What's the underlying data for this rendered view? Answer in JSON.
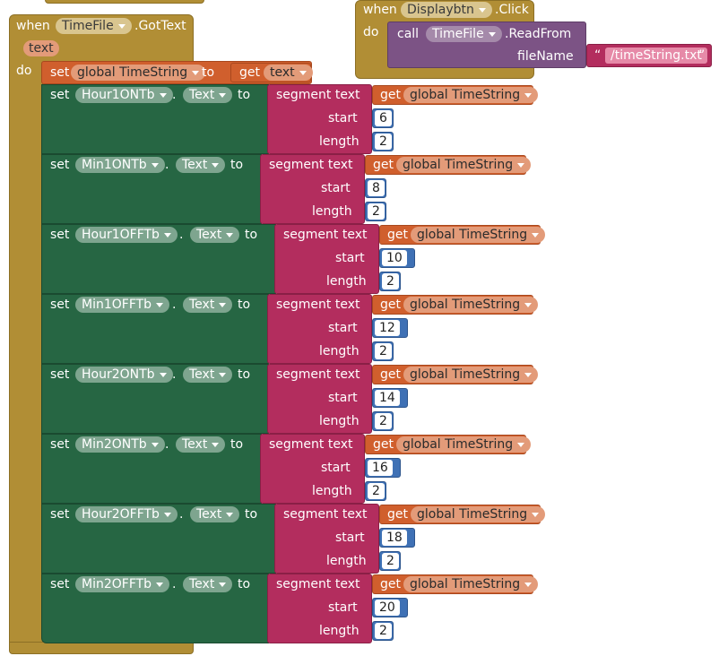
{
  "event1": {
    "when": "when",
    "component": "TimeFile",
    "event": ".GotText",
    "param": "text",
    "do": "do",
    "set_global": {
      "set": "set",
      "var": "global TimeString",
      "to": "to",
      "get": "get",
      "getvar": "text"
    },
    "setters": [
      {
        "component": "Hour1ONTb",
        "start": "6",
        "length": "2"
      },
      {
        "component": "Min1ONTb",
        "start": "8",
        "length": "2"
      },
      {
        "component": "Hour1OFFTb",
        "start": "10",
        "length": "2"
      },
      {
        "component": "Min1OFFTb",
        "start": "12",
        "length": "2"
      },
      {
        "component": "Hour2ONTb",
        "start": "14",
        "length": "2"
      },
      {
        "component": "Min2ONTb",
        "start": "16",
        "length": "2"
      },
      {
        "component": "Hour2OFFTb",
        "start": "18",
        "length": "2"
      },
      {
        "component": "Min2OFFTb",
        "start": "20",
        "length": "2"
      }
    ],
    "labels": {
      "set": "set",
      "dot": ".",
      "prop": "Text",
      "to": "to",
      "segment": "segment text",
      "get": "get",
      "getvar": "global TimeString",
      "start": "start",
      "length": "length"
    }
  },
  "event2": {
    "when": "when",
    "component": "Displaybtn",
    "event": ".Click",
    "do": "do",
    "call": "call",
    "call_component": "TimeFile",
    "method": ".ReadFrom",
    "arg": "fileName",
    "quote_open": "“",
    "value": "/timeString.txt",
    "quote_close": "”"
  },
  "colors": {
    "event": "#b18e35",
    "variable": "#d05f2d",
    "component": "#266643",
    "text": "#b32d5e",
    "math": "#3f71b5",
    "procedure_call": "#7c5385"
  }
}
